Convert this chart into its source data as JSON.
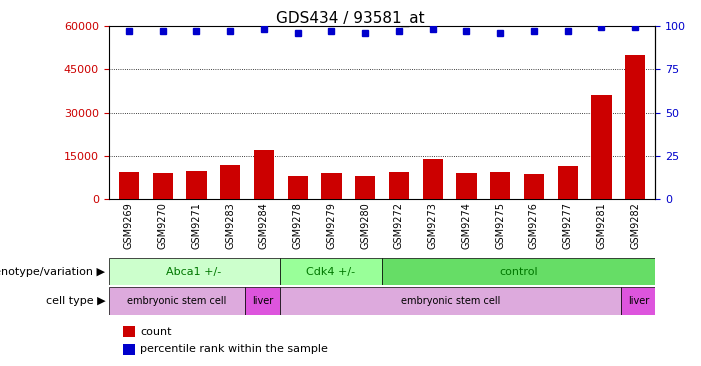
{
  "title": "GDS434 / 93581_at",
  "samples": [
    "GSM9269",
    "GSM9270",
    "GSM9271",
    "GSM9283",
    "GSM9284",
    "GSM9278",
    "GSM9279",
    "GSM9280",
    "GSM9272",
    "GSM9273",
    "GSM9274",
    "GSM9275",
    "GSM9276",
    "GSM9277",
    "GSM9281",
    "GSM9282"
  ],
  "counts": [
    9500,
    9200,
    9700,
    12000,
    17000,
    8000,
    9200,
    8200,
    9500,
    14000,
    9200,
    9400,
    8800,
    11500,
    36000,
    50000
  ],
  "percentiles": [
    97,
    97,
    97,
    97,
    98,
    96,
    97,
    96,
    97,
    98,
    97,
    96,
    97,
    97,
    99,
    99
  ],
  "ylim_left": [
    0,
    60000
  ],
  "ylim_right": [
    0,
    100
  ],
  "yticks_left": [
    0,
    15000,
    30000,
    45000,
    60000
  ],
  "yticks_right": [
    0,
    25,
    50,
    75,
    100
  ],
  "bar_color": "#cc0000",
  "dot_color": "#0000cc",
  "background_color": "#ffffff",
  "genotype_groups": [
    {
      "label": "Abca1 +/-",
      "start": 0,
      "end": 5,
      "color": "#ccffcc"
    },
    {
      "label": "Cdk4 +/-",
      "start": 5,
      "end": 8,
      "color": "#99ff99"
    },
    {
      "label": "control",
      "start": 8,
      "end": 16,
      "color": "#66dd66"
    }
  ],
  "celltype_groups": [
    {
      "label": "embryonic stem cell",
      "start": 0,
      "end": 4,
      "color": "#ddaadd"
    },
    {
      "label": "liver",
      "start": 4,
      "end": 5,
      "color": "#dd55dd"
    },
    {
      "label": "embryonic stem cell",
      "start": 5,
      "end": 15,
      "color": "#ddaadd"
    },
    {
      "label": "liver",
      "start": 15,
      "end": 16,
      "color": "#dd55dd"
    }
  ],
  "left_label_color": "#cc0000",
  "right_tick_color": "#0000cc",
  "geno_text_color": "#007700",
  "cell_text_color": "#000000"
}
